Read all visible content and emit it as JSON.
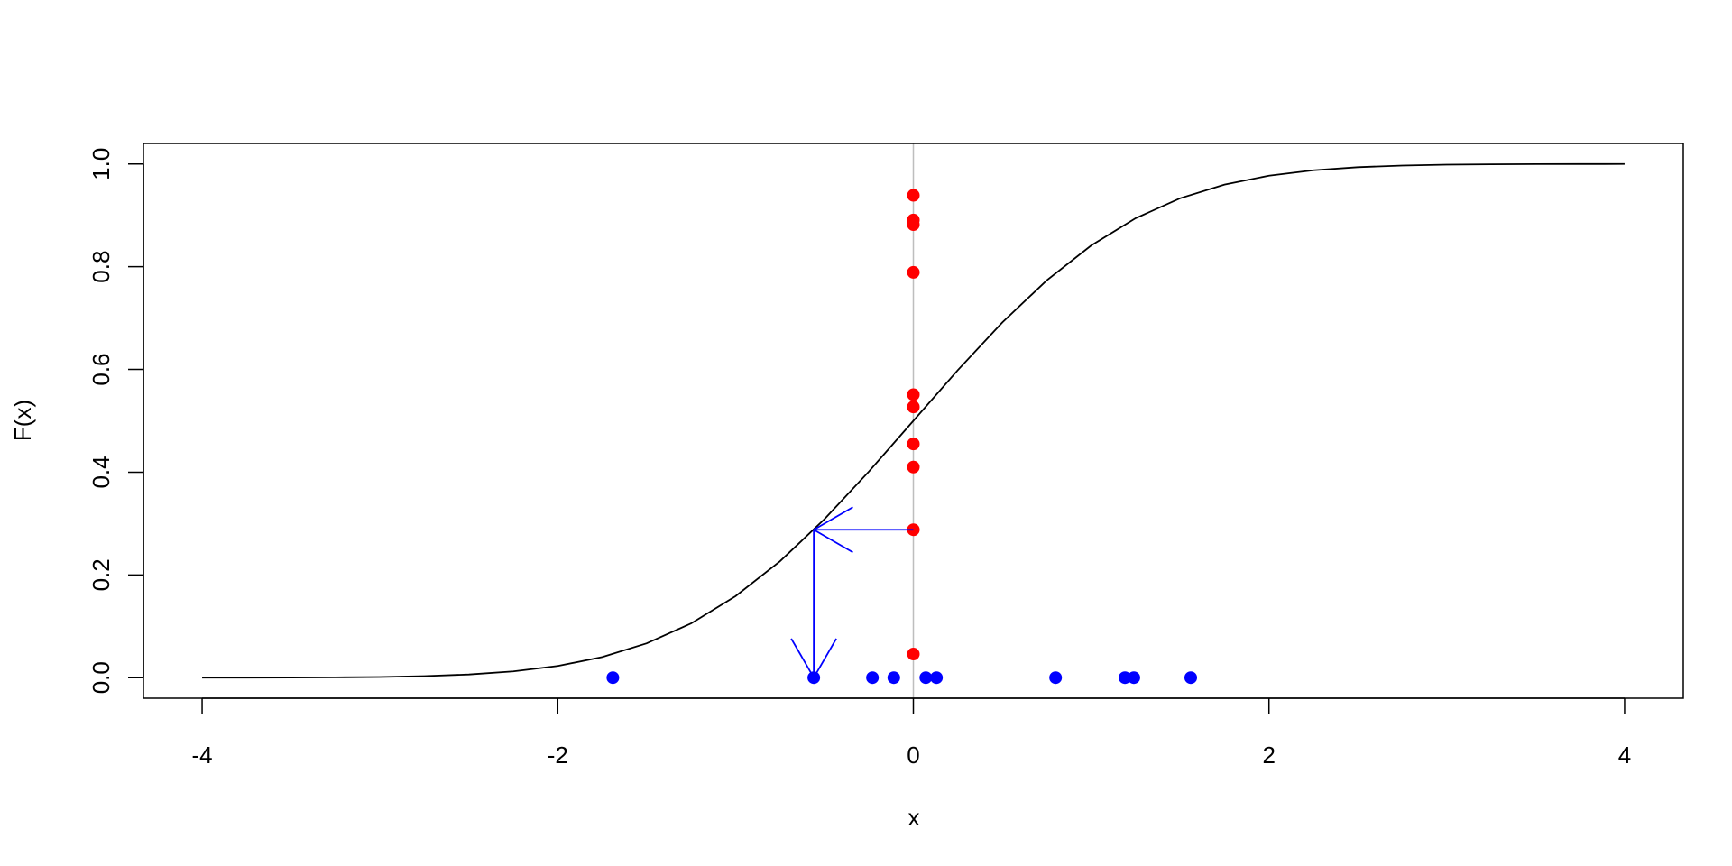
{
  "chart_data": {
    "type": "line",
    "x_label": "x",
    "y_label": "F(x)",
    "xlim": [
      -4.33,
      4.33
    ],
    "ylim": [
      -0.04,
      1.04
    ],
    "xticks": [
      -4,
      -2,
      0,
      2,
      4
    ],
    "yticks": [
      {
        "value": 0,
        "label": "0.0"
      },
      {
        "value": 0.2,
        "label": "0.2"
      },
      {
        "value": 0.4,
        "label": "0.4"
      },
      {
        "value": 0.6,
        "label": "0.6"
      },
      {
        "value": 0.8,
        "label": "0.8"
      },
      {
        "value": 1,
        "label": "1.0"
      }
    ],
    "vline": {
      "x": 0,
      "color": "#bebebe"
    },
    "series": [
      {
        "type": "line",
        "color": "#000000",
        "x": [
          -4,
          -3.75,
          -3.5,
          -3.25,
          -3,
          -2.75,
          -2.5,
          -2.25,
          -2,
          -1.75,
          -1.5,
          -1.25,
          -1,
          -0.75,
          -0.5,
          -0.25,
          0,
          0.25,
          0.5,
          0.75,
          1,
          1.25,
          1.5,
          1.75,
          2,
          2.25,
          2.5,
          2.75,
          3,
          3.25,
          3.5,
          3.75,
          4
        ],
        "values": [
          3e-05,
          0.0001,
          0.0002,
          0.0006,
          0.0013,
          0.003,
          0.0062,
          0.0122,
          0.0228,
          0.0401,
          0.0668,
          0.1056,
          0.1587,
          0.2266,
          0.3085,
          0.4013,
          0.5,
          0.5987,
          0.6915,
          0.7734,
          0.8413,
          0.8944,
          0.9332,
          0.9599,
          0.9772,
          0.9878,
          0.9938,
          0.997,
          0.9987,
          0.9994,
          0.9998,
          0.9999,
          1.0
        ]
      },
      {
        "type": "scatter",
        "color": "#ff0000",
        "x": [
          0,
          0,
          0,
          0,
          0,
          0,
          0,
          0,
          0,
          0
        ],
        "values": [
          0.939,
          0.891,
          0.882,
          0.789,
          0.551,
          0.527,
          0.455,
          0.41,
          0.288,
          0.046
        ]
      },
      {
        "type": "scatter",
        "color": "#0000ff",
        "x": [
          -1.69,
          -0.56,
          -0.23,
          -0.11,
          0.07,
          0.13,
          0.8,
          1.19,
          1.24,
          1.56
        ],
        "values": [
          0,
          0,
          0,
          0,
          0,
          0,
          0,
          0,
          0,
          0
        ]
      }
    ],
    "arrows": {
      "color": "#0000ff",
      "items": [
        {
          "x": [
            0,
            -0.56
          ],
          "y": [
            0.288,
            0.288
          ]
        },
        {
          "x": [
            -0.56,
            -0.56
          ],
          "y": [
            0.288,
            0
          ]
        }
      ]
    }
  }
}
